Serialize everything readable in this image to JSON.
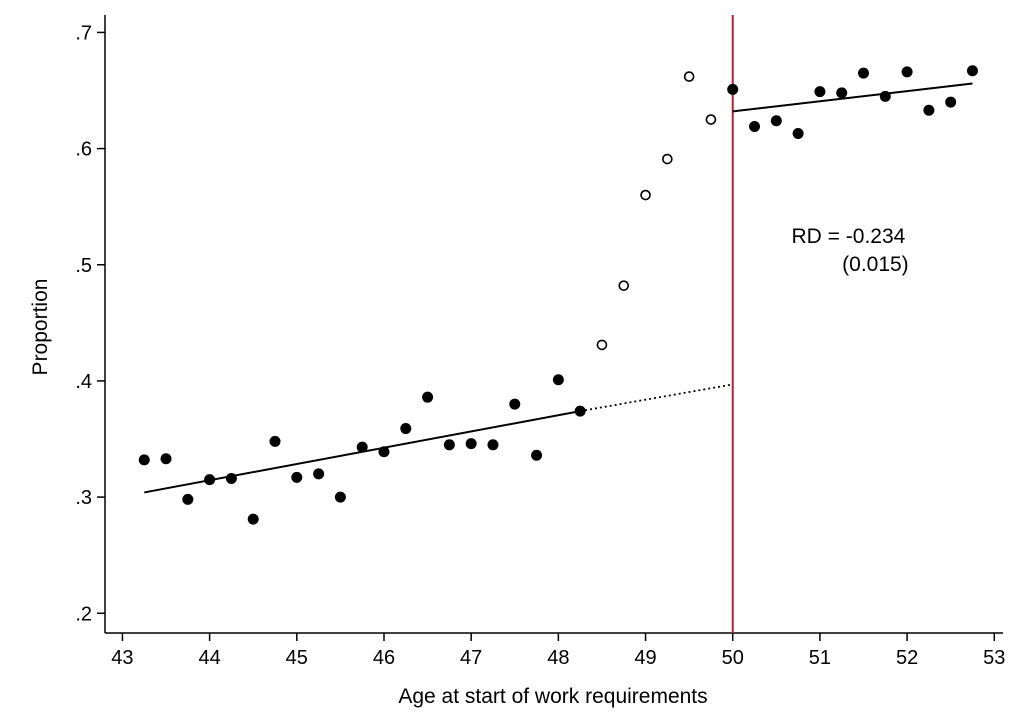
{
  "chart_data": {
    "type": "scatter",
    "title": "",
    "xlabel": "Age at start of work requirements",
    "ylabel": "Proportion",
    "xlim": [
      42.8,
      53.1
    ],
    "ylim": [
      0.183,
      0.715
    ],
    "x_ticks": [
      43,
      44,
      45,
      46,
      47,
      48,
      49,
      50,
      51,
      52,
      53
    ],
    "x_tick_labels": [
      "43",
      "44",
      "45",
      "46",
      "47",
      "48",
      "49",
      "50",
      "51",
      "52",
      "53"
    ],
    "y_ticks": [
      0.2,
      0.3,
      0.4,
      0.5,
      0.6,
      0.7
    ],
    "y_tick_labels": [
      ".2",
      ".3",
      ".4",
      ".5",
      ".6",
      ".7"
    ],
    "grid": false,
    "cutoff": 50,
    "cutoff_color": "#b22234",
    "series": [
      {
        "marker": "filled",
        "points": [
          [
            43.25,
            0.332
          ],
          [
            43.5,
            0.333
          ],
          [
            43.75,
            0.298
          ],
          [
            44.0,
            0.315
          ],
          [
            44.25,
            0.316
          ],
          [
            44.5,
            0.281
          ],
          [
            44.75,
            0.348
          ],
          [
            45.0,
            0.317
          ],
          [
            45.25,
            0.32
          ],
          [
            45.5,
            0.3
          ],
          [
            45.75,
            0.343
          ],
          [
            46.0,
            0.339
          ],
          [
            46.25,
            0.359
          ],
          [
            46.5,
            0.386
          ],
          [
            46.75,
            0.345
          ],
          [
            47.0,
            0.346
          ],
          [
            47.25,
            0.345
          ],
          [
            47.5,
            0.38
          ],
          [
            47.75,
            0.336
          ],
          [
            48.0,
            0.401
          ],
          [
            48.25,
            0.374
          ],
          [
            50.0,
            0.651
          ],
          [
            50.25,
            0.619
          ],
          [
            50.5,
            0.624
          ],
          [
            50.75,
            0.613
          ],
          [
            51.0,
            0.649
          ],
          [
            51.25,
            0.648
          ],
          [
            51.5,
            0.665
          ],
          [
            51.75,
            0.645
          ],
          [
            52.0,
            0.666
          ],
          [
            52.25,
            0.633
          ],
          [
            52.5,
            0.64
          ],
          [
            52.75,
            0.667
          ]
        ]
      },
      {
        "marker": "hollow",
        "points": [
          [
            48.5,
            0.431
          ],
          [
            48.75,
            0.482
          ],
          [
            49.0,
            0.56
          ],
          [
            49.25,
            0.591
          ],
          [
            49.5,
            0.662
          ],
          [
            49.75,
            0.625
          ]
        ]
      }
    ],
    "fit_lines": [
      {
        "x": [
          43.25,
          48.25
        ],
        "y": [
          0.304,
          0.374
        ],
        "style": "solid"
      },
      {
        "x": [
          48.25,
          50.0
        ],
        "y": [
          0.374,
          0.397
        ],
        "style": "dotted"
      },
      {
        "x": [
          50.0,
          52.75
        ],
        "y": [
          0.632,
          0.656
        ],
        "style": "solid"
      }
    ],
    "annotation": {
      "line1": "RD = -0.234",
      "line2": "(0.015)",
      "x": 51.35,
      "y": 0.517
    }
  }
}
